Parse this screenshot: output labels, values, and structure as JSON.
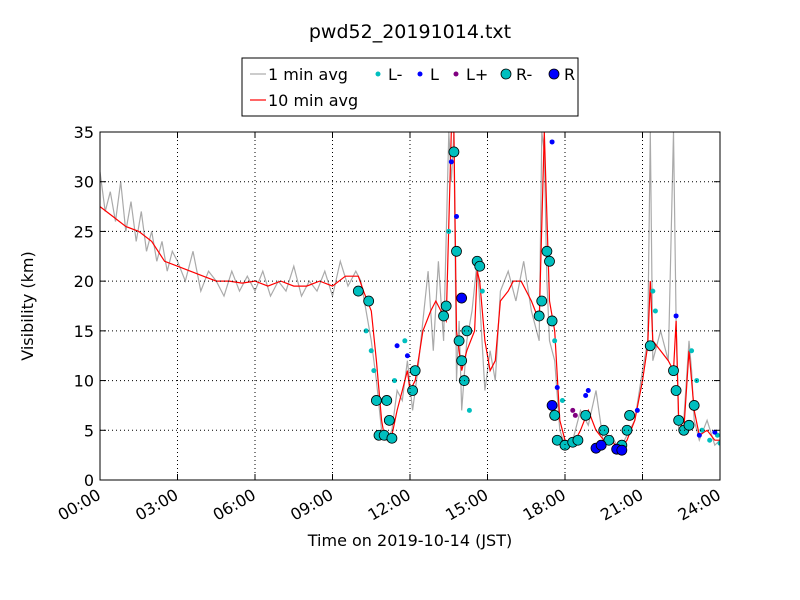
{
  "chart_data": {
    "type": "line",
    "title": "pwd52_20191014.txt",
    "x_label": "Time on 2019-10-14 (JST)",
    "y_label": "Visibility (km)",
    "xlim": [
      0,
      24
    ],
    "xticks": [
      {
        "value": 0,
        "label": "00:00"
      },
      {
        "value": 3,
        "label": "03:00"
      },
      {
        "value": 6,
        "label": "06:00"
      },
      {
        "value": 9,
        "label": "09:00"
      },
      {
        "value": 12,
        "label": "12:00"
      },
      {
        "value": 15,
        "label": "15:00"
      },
      {
        "value": 18,
        "label": "18:00"
      },
      {
        "value": 21,
        "label": "21:00"
      },
      {
        "value": 24,
        "label": "24:00"
      }
    ],
    "ylim": [
      0,
      35
    ],
    "yticks": [
      0,
      5,
      10,
      15,
      20,
      25,
      30,
      35
    ],
    "grid": true,
    "legend": "upper center",
    "series": [
      {
        "name": "1 min avg",
        "kind": "line",
        "color": "#aaaaaa",
        "x": [
          0,
          0.2,
          0.4,
          0.6,
          0.8,
          1,
          1.2,
          1.4,
          1.6,
          1.8,
          2,
          2.2,
          2.4,
          2.6,
          2.8,
          3,
          3.3,
          3.6,
          3.9,
          4.2,
          4.5,
          4.8,
          5.1,
          5.4,
          5.7,
          6,
          6.3,
          6.6,
          6.9,
          7.2,
          7.5,
          7.8,
          8.1,
          8.4,
          8.7,
          9,
          9.3,
          9.6,
          9.9,
          10.1,
          10.3,
          10.5,
          10.7,
          10.9,
          11.1,
          11.3,
          11.5,
          11.7,
          11.9,
          12.1,
          12.3,
          12.5,
          12.7,
          12.9,
          13.1,
          13.3,
          13.5,
          13.6,
          13.7,
          13.8,
          13.9,
          14,
          14.2,
          14.4,
          14.6,
          14.7,
          14.9,
          15.1,
          15.3,
          15.5,
          15.8,
          16.1,
          16.4,
          16.7,
          17,
          17.1,
          17.2,
          17.3,
          17.4,
          17.6,
          17.8,
          18,
          18.3,
          18.6,
          18.9,
          19.2,
          19.5,
          19.8,
          20.1,
          20.4,
          20.7,
          21,
          21.2,
          21.3,
          21.4,
          21.7,
          22,
          22.2,
          22.3,
          22.4,
          22.6,
          22.8,
          22.9,
          23,
          23.2,
          23.5,
          23.8,
          24
        ],
        "values": [
          31,
          27,
          29,
          26,
          30,
          25,
          28,
          24,
          27,
          23,
          25,
          22,
          24,
          21,
          23,
          22,
          20,
          23,
          19,
          21,
          20,
          18.5,
          21,
          19,
          20.5,
          19,
          21,
          18.5,
          20,
          19,
          21.5,
          18.5,
          20,
          19,
          21,
          18.5,
          22,
          19.5,
          21,
          20,
          17,
          14,
          10,
          5,
          4,
          5,
          9,
          8,
          12,
          7,
          11,
          16,
          21,
          13,
          22,
          14,
          35,
          30,
          35,
          10,
          16,
          7,
          14,
          17,
          22,
          18,
          9,
          13,
          10,
          19,
          21,
          18,
          22,
          17,
          14,
          35,
          33,
          20,
          14,
          12,
          5,
          3.5,
          4,
          7,
          5.5,
          9,
          3.5,
          4.5,
          3,
          4.5,
          6,
          11,
          14,
          35,
          12,
          15,
          12,
          35,
          16,
          5,
          6,
          14,
          11,
          6,
          4,
          6,
          3.5,
          4
        ]
      },
      {
        "name": "10 min avg",
        "kind": "line",
        "color": "#ff0000",
        "x": [
          0,
          0.5,
          1,
          1.5,
          2,
          2.5,
          3,
          3.5,
          4,
          4.5,
          5,
          5.5,
          6,
          6.5,
          7,
          7.5,
          8,
          8.5,
          9,
          9.5,
          10,
          10.2,
          10.5,
          10.7,
          10.9,
          11,
          11.3,
          11.5,
          11.7,
          11.9,
          12,
          12.2,
          12.5,
          12.8,
          13,
          13.2,
          13.4,
          13.6,
          13.7,
          13.8,
          13.9,
          14,
          14.2,
          14.5,
          14.6,
          14.7,
          14.9,
          15.1,
          15.3,
          15.5,
          15.8,
          16,
          16.3,
          16.7,
          17,
          17.2,
          17.4,
          17.6,
          17.8,
          18,
          18.3,
          18.6,
          18.9,
          19.2,
          19.5,
          19.8,
          20.1,
          20.4,
          20.7,
          21,
          21.2,
          21.3,
          21.4,
          21.7,
          22,
          22.2,
          22.3,
          22.4,
          22.6,
          22.8,
          23,
          23.2,
          23.5,
          23.8,
          24
        ],
        "values": [
          27.5,
          26.5,
          25.5,
          25,
          24,
          22,
          21.5,
          21,
          20.5,
          20,
          20,
          19.8,
          20,
          19.5,
          20,
          19.5,
          19.5,
          20,
          19.5,
          20.5,
          20.5,
          19,
          17,
          12,
          6,
          4.5,
          4.5,
          7,
          9,
          11,
          9,
          10,
          15,
          17,
          18,
          17,
          16,
          35,
          35,
          15,
          13,
          11,
          13,
          15,
          21,
          20,
          14,
          11,
          12,
          18,
          19,
          20,
          20,
          18,
          16,
          35,
          18,
          15,
          6,
          4,
          3.5,
          5,
          7,
          5,
          4,
          4,
          3,
          4,
          6,
          10,
          13.5,
          20,
          14,
          13,
          12,
          11,
          16,
          6,
          5,
          13,
          7,
          4.5,
          5,
          4,
          4
        ]
      },
      {
        "name": "L-",
        "kind": "scatter",
        "marker": "small",
        "color": "#00bfbf",
        "x": [
          10.3,
          10.5,
          10.6,
          11.4,
          11.8,
          13.5,
          14.3,
          14.8,
          17.6,
          17.9,
          21.4,
          21.5,
          22.9,
          23.1,
          23.3,
          23.6,
          23.9,
          24
        ],
        "values": [
          15,
          13,
          11,
          10,
          14,
          25,
          7,
          19,
          14,
          8,
          19,
          17,
          13,
          10,
          5,
          4,
          4.5,
          3.7
        ]
      },
      {
        "name": "L",
        "kind": "scatter",
        "marker": "small",
        "color": "#0000ff",
        "x": [
          11.5,
          11.9,
          13.6,
          13.8,
          17.5,
          17.7,
          18.8,
          18.9,
          20.8,
          22.3,
          23.2,
          23.8
        ],
        "values": [
          13.5,
          12.5,
          32,
          26.5,
          34,
          9.3,
          8.5,
          9,
          7,
          16.5,
          4.5,
          4.8
        ]
      },
      {
        "name": "L+",
        "kind": "scatter",
        "marker": "small",
        "color": "#800080",
        "x": [
          18.3,
          18.4
        ],
        "values": [
          7,
          6.5
        ]
      },
      {
        "name": "R-",
        "kind": "scatter",
        "marker": "large",
        "color": "#00bfbf",
        "x": [
          10,
          10.4,
          10.7,
          10.8,
          11,
          11.1,
          11.2,
          11.3,
          12.1,
          12.2,
          13.3,
          13.4,
          13.7,
          13.8,
          13.9,
          14,
          14.1,
          14.2,
          14.6,
          14.7,
          17,
          17.1,
          17.3,
          17.4,
          17.5,
          17.6,
          17.7,
          18,
          18.3,
          18.5,
          18.8,
          19.5,
          19.7,
          20.2,
          20.4,
          20.5,
          21.3,
          22.2,
          22.3,
          22.4,
          22.6,
          22.8,
          23
        ],
        "values": [
          19,
          18,
          8,
          4.5,
          4.5,
          8,
          6,
          4.2,
          9,
          11,
          16.5,
          17.5,
          33,
          23,
          14,
          12,
          10,
          15,
          22,
          21.5,
          16.5,
          18,
          23,
          22,
          16,
          6.5,
          4,
          3.5,
          3.8,
          4,
          6.5,
          5,
          4,
          3.5,
          5,
          6.5,
          13.5,
          11,
          9,
          6,
          5,
          5.5,
          7.5
        ]
      },
      {
        "name": "R",
        "kind": "scatter",
        "marker": "large",
        "color": "#0000ff",
        "x": [
          14,
          17.5,
          19.2,
          19.4,
          20,
          20.2
        ],
        "values": [
          18.3,
          7.5,
          3.2,
          3.5,
          3.1,
          3
        ]
      }
    ]
  }
}
